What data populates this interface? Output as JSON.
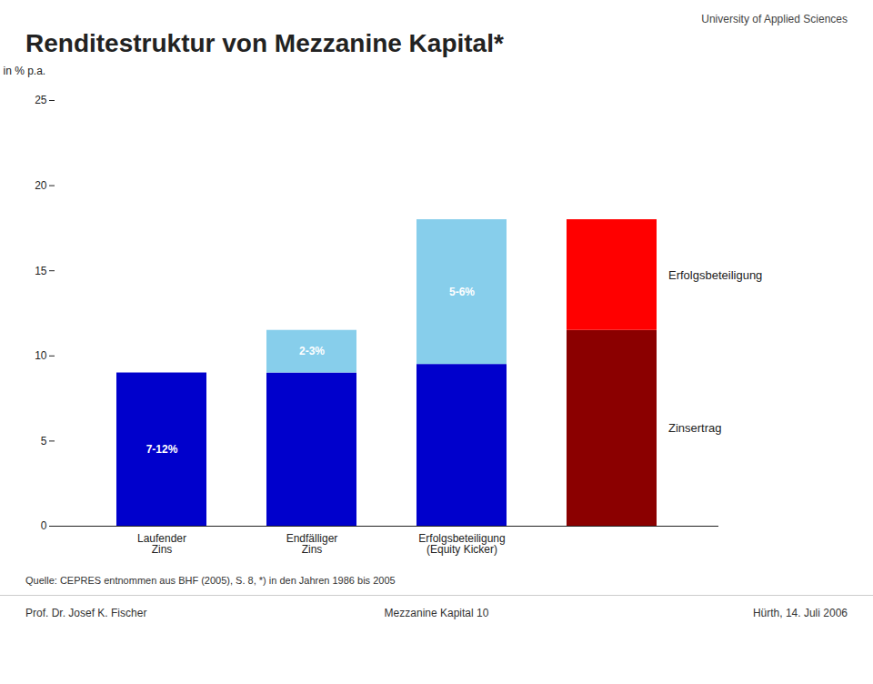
{
  "chart_data": {
    "type": "bar",
    "stacked": true,
    "title": "Renditestruktur von Mezzanine Kapital*",
    "subtitle": "University of Applied Sciences",
    "ylabel": "in % p.a.",
    "categories": [
      "Laufender\nZins",
      "Endfälliger\nZins",
      "Erfolgsbeteiligung\n(Equity Kicker)",
      null
    ],
    "series": [
      {
        "color": "#0000cc",
        "values": [
          9.0,
          9.0,
          9.5,
          null
        ]
      },
      {
        "color": "#87ceeb",
        "values": [
          0.0,
          2.5,
          8.5,
          null
        ]
      },
      {
        "name": "Zinsertrag",
        "color": "#8b0000",
        "values": [
          null,
          null,
          null,
          11.5
        ]
      },
      {
        "name": "Erfolgsbeteiligung",
        "color": "#ff0000",
        "values": [
          null,
          null,
          null,
          6.5
        ]
      }
    ],
    "annotations": [
      "7-12%",
      "2-3%",
      "5-6%"
    ],
    "ylim": [
      0,
      25
    ],
    "yticks": [
      0,
      5,
      10,
      15,
      20,
      25
    ],
    "source": "Quelle: CEPRES entnommen aus BHF (2005), S. 8, *) in den Jahren 1986 bis 2005",
    "footer": [
      "Prof. Dr. Josef K. Fischer",
      "Mezzanine Kapital  10",
      "Hürth, 14. Juli 2006"
    ]
  }
}
